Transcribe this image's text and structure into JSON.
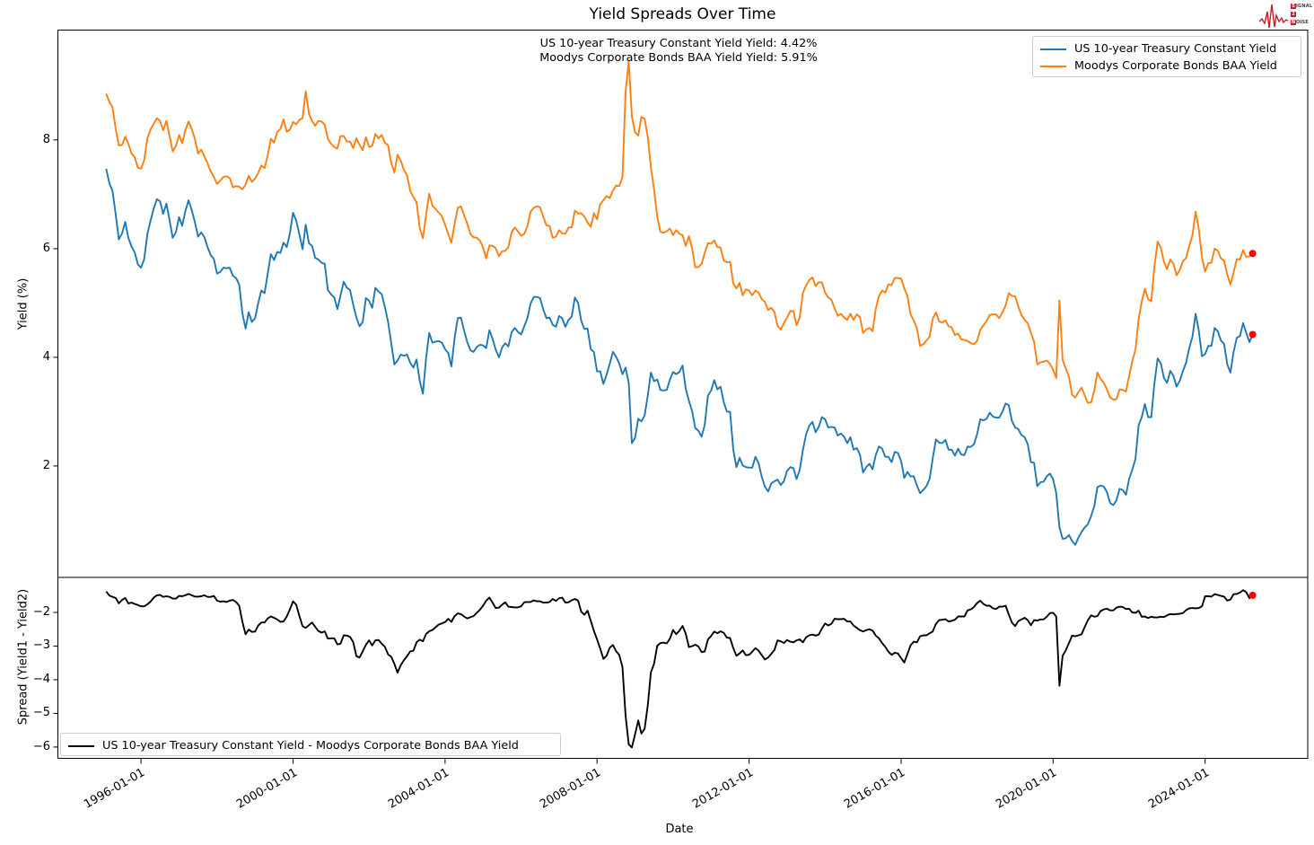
{
  "figure": {
    "title": "Yield Spreads Over Time"
  },
  "annotation": {
    "line1": "US 10-year Treasury Constant Yield Yield: 4.42%",
    "line2": "Moodys Corporate Bonds BAA Yield Yield: 5.91%"
  },
  "legends": {
    "top": [
      {
        "label": "US 10-year Treasury Constant Yield",
        "color": "#1f77b4"
      },
      {
        "label": "Moodys Corporate Bonds BAA Yield",
        "color": "#ff7f0e"
      }
    ],
    "bottom": [
      {
        "label": "US 10-year Treasury Constant Yield - Moodys Corporate Bonds BAA Yield",
        "color": "#000000"
      }
    ]
  },
  "logo": {
    "color": "#c41e25",
    "lines": [
      {
        "boxed": "S",
        "rest": "IGNAL"
      },
      {
        "boxed": "2",
        "rest": ""
      },
      {
        "boxed": "N",
        "rest": "OISE"
      }
    ]
  },
  "chart_data": {
    "type": "line",
    "title": "Yield Spreads Over Time",
    "xlabel": "Date",
    "x_start": 1995.0833,
    "x_step_years": 0.0833333,
    "xlim": [
      1993.8,
      2026.7
    ],
    "xticks": {
      "years": [
        1996,
        2000,
        2004,
        2008,
        2012,
        2016,
        2020,
        2024
      ],
      "labels": [
        "1996-01-01",
        "2000-01-01",
        "2004-01-01",
        "2008-01-01",
        "2012-01-01",
        "2016-01-01",
        "2020-01-01",
        "2024-01-01"
      ]
    },
    "grid": false,
    "panels": [
      {
        "ylabel": "Yield (%)",
        "ylim": [
          -0.05,
          10.03
        ],
        "yticks": [
          2,
          4,
          6,
          8
        ]
      },
      {
        "ylabel": "Spread (Yield1 - Yield2)",
        "ylim": [
          -6.35,
          -0.96
        ],
        "yticks": [
          -2,
          -3,
          -4,
          -5,
          -6
        ]
      }
    ],
    "end_marker_color": "#ff0000",
    "series": [
      {
        "name": "US 10-year Treasury Constant Yield",
        "color": "#1f77b4",
        "panel": 0,
        "final_value": 4.42,
        "values": [
          7.47,
          7.2,
          7.06,
          6.63,
          6.17,
          6.28,
          6.49,
          6.2,
          6.04,
          5.93,
          5.71,
          5.65,
          5.81,
          6.27,
          6.51,
          6.74,
          6.91,
          6.87,
          6.64,
          6.83,
          6.53,
          6.2,
          6.3,
          6.58,
          6.42,
          6.69,
          6.89,
          6.71,
          6.49,
          6.22,
          6.3,
          6.21,
          6.03,
          5.88,
          5.81,
          5.54,
          5.57,
          5.65,
          5.64,
          5.65,
          5.5,
          5.46,
          5.34,
          4.81,
          4.53,
          4.83,
          4.65,
          4.72,
          5.0,
          5.23,
          5.18,
          5.54,
          5.9,
          5.79,
          5.94,
          5.92,
          6.11,
          6.03,
          6.28,
          6.66,
          6.52,
          6.26,
          5.99,
          6.44,
          6.1,
          6.05,
          5.83,
          5.8,
          5.74,
          5.72,
          5.24,
          5.16,
          5.1,
          4.89,
          5.14,
          5.39,
          5.28,
          5.24,
          4.97,
          4.73,
          4.57,
          4.65,
          5.09,
          5.04,
          4.91,
          5.28,
          5.21,
          5.16,
          4.93,
          4.65,
          4.26,
          3.87,
          3.94,
          4.05,
          4.03,
          4.05,
          3.9,
          3.81,
          3.96,
          3.57,
          3.33,
          3.98,
          4.45,
          4.27,
          4.29,
          4.3,
          4.27,
          4.15,
          4.08,
          3.83,
          4.35,
          4.72,
          4.73,
          4.5,
          4.28,
          4.13,
          4.1,
          4.19,
          4.23,
          4.22,
          4.17,
          4.5,
          4.34,
          4.14,
          4.0,
          4.18,
          4.26,
          4.2,
          4.46,
          4.54,
          4.47,
          4.42,
          4.57,
          4.72,
          4.99,
          5.11,
          5.11,
          5.09,
          4.88,
          4.72,
          4.73,
          4.6,
          4.56,
          4.76,
          4.72,
          4.56,
          4.69,
          4.75,
          5.1,
          5.0,
          4.67,
          4.52,
          4.53,
          4.15,
          4.1,
          3.74,
          3.74,
          3.51,
          3.68,
          3.88,
          4.1,
          4.01,
          3.89,
          3.69,
          3.81,
          3.53,
          2.42,
          2.52,
          2.87,
          2.82,
          2.93,
          3.29,
          3.72,
          3.56,
          3.59,
          3.4,
          3.39,
          3.4,
          3.59,
          3.73,
          3.69,
          3.73,
          3.85,
          3.42,
          3.2,
          3.01,
          2.7,
          2.65,
          2.54,
          2.76,
          3.29,
          3.39,
          3.58,
          3.41,
          3.46,
          3.17,
          3.0,
          3.0,
          2.3,
          1.98,
          2.15,
          2.01,
          1.98,
          1.97,
          1.97,
          2.17,
          2.05,
          1.8,
          1.62,
          1.53,
          1.68,
          1.72,
          1.75,
          1.65,
          1.72,
          1.91,
          1.98,
          1.96,
          1.76,
          1.93,
          2.3,
          2.58,
          2.74,
          2.81,
          2.62,
          2.72,
          2.9,
          2.86,
          2.71,
          2.72,
          2.71,
          2.56,
          2.6,
          2.54,
          2.42,
          2.53,
          2.3,
          2.33,
          2.21,
          1.88,
          1.98,
          2.04,
          1.94,
          2.2,
          2.36,
          2.32,
          2.17,
          2.17,
          2.07,
          2.26,
          2.24,
          2.09,
          1.78,
          1.89,
          1.81,
          1.81,
          1.64,
          1.5,
          1.56,
          1.63,
          1.76,
          2.14,
          2.49,
          2.43,
          2.42,
          2.48,
          2.3,
          2.3,
          2.19,
          2.32,
          2.21,
          2.2,
          2.36,
          2.35,
          2.4,
          2.58,
          2.86,
          2.84,
          2.87,
          2.98,
          2.91,
          2.89,
          2.89,
          3.0,
          3.15,
          3.12,
          2.83,
          2.71,
          2.68,
          2.57,
          2.53,
          2.4,
          2.07,
          2.06,
          1.63,
          1.7,
          1.71,
          1.81,
          1.86,
          1.76,
          1.5,
          0.87,
          0.66,
          0.67,
          0.73,
          0.62,
          0.55,
          0.68,
          0.79,
          0.87,
          0.93,
          1.08,
          1.26,
          1.61,
          1.64,
          1.62,
          1.52,
          1.32,
          1.28,
          1.37,
          1.58,
          1.56,
          1.47,
          1.76,
          1.93,
          2.13,
          2.75,
          2.9,
          3.14,
          2.9,
          2.9,
          3.52,
          3.98,
          3.89,
          3.62,
          3.53,
          3.75,
          3.66,
          3.46,
          3.57,
          3.75,
          3.9,
          4.17,
          4.38,
          4.8,
          4.5,
          4.02,
          4.06,
          4.21,
          4.21,
          4.54,
          4.48,
          4.31,
          4.25,
          3.87,
          3.72,
          4.1,
          4.36,
          4.39,
          4.63,
          4.45,
          4.28,
          4.42
        ]
      },
      {
        "name": "Moodys Corporate Bonds BAA Yield",
        "color": "#ff7f0e",
        "panel": 0,
        "final_value": 5.91,
        "values": [
          8.85,
          8.7,
          8.6,
          8.2,
          7.9,
          7.91,
          8.06,
          7.93,
          7.75,
          7.68,
          7.49,
          7.47,
          7.63,
          8.03,
          8.19,
          8.3,
          8.4,
          8.35,
          8.18,
          8.35,
          8.07,
          7.79,
          7.89,
          8.09,
          7.94,
          8.18,
          8.34,
          8.2,
          8.02,
          7.75,
          7.82,
          7.7,
          7.57,
          7.42,
          7.32,
          7.19,
          7.25,
          7.32,
          7.33,
          7.3,
          7.13,
          7.15,
          7.14,
          7.09,
          7.18,
          7.34,
          7.23,
          7.29,
          7.39,
          7.53,
          7.48,
          7.72,
          8.02,
          7.95,
          8.15,
          8.2,
          8.38,
          8.15,
          8.19,
          8.33,
          8.29,
          8.37,
          8.4,
          8.9,
          8.48,
          8.35,
          8.26,
          8.35,
          8.34,
          8.28,
          8.02,
          7.93,
          7.87,
          7.84,
          8.07,
          8.07,
          7.97,
          7.97,
          7.85,
          8.03,
          7.91,
          7.81,
          8.05,
          7.87,
          7.89,
          8.11,
          8.03,
          8.09,
          7.95,
          7.9,
          7.58,
          7.4,
          7.73,
          7.62,
          7.45,
          7.35,
          7.06,
          6.95,
          6.85,
          6.38,
          6.19,
          6.62,
          7.01,
          6.79,
          6.73,
          6.66,
          6.6,
          6.44,
          6.27,
          6.11,
          6.46,
          6.75,
          6.78,
          6.62,
          6.46,
          6.27,
          6.21,
          6.2,
          6.15,
          6.02,
          5.82,
          6.06,
          6.05,
          6.01,
          5.86,
          5.95,
          5.96,
          6.03,
          6.3,
          6.39,
          6.32,
          6.24,
          6.27,
          6.41,
          6.68,
          6.75,
          6.78,
          6.76,
          6.59,
          6.43,
          6.42,
          6.2,
          6.22,
          6.34,
          6.28,
          6.27,
          6.39,
          6.39,
          6.7,
          6.65,
          6.65,
          6.59,
          6.48,
          6.4,
          6.65,
          6.54,
          6.82,
          6.89,
          6.97,
          6.93,
          7.07,
          7.16,
          7.15,
          7.31,
          8.88,
          9.45,
          8.43,
          8.14,
          8.08,
          8.42,
          8.39,
          8.06,
          7.5,
          7.09,
          6.58,
          6.31,
          6.29,
          6.32,
          6.37,
          6.25,
          6.34,
          6.27,
          6.25,
          6.05,
          6.23,
          6.01,
          5.66,
          5.66,
          5.72,
          5.92,
          6.1,
          6.09,
          6.15,
          6.03,
          6.02,
          5.78,
          5.75,
          5.76,
          5.36,
          5.27,
          5.37,
          5.14,
          5.25,
          5.23,
          5.14,
          5.23,
          5.19,
          5.07,
          5.02,
          4.87,
          4.91,
          4.84,
          4.58,
          4.51,
          4.63,
          4.73,
          4.85,
          4.85,
          4.59,
          4.73,
          5.19,
          5.32,
          5.42,
          5.47,
          5.31,
          5.38,
          5.38,
          5.19,
          5.1,
          5.06,
          4.9,
          4.76,
          4.8,
          4.73,
          4.69,
          4.8,
          4.69,
          4.79,
          4.74,
          4.45,
          4.51,
          4.54,
          4.48,
          4.89,
          5.13,
          5.23,
          5.19,
          5.34,
          5.33,
          5.46,
          5.46,
          5.45,
          5.27,
          5.13,
          4.79,
          4.68,
          4.53,
          4.21,
          4.24,
          4.31,
          4.38,
          4.71,
          4.83,
          4.66,
          4.64,
          4.68,
          4.57,
          4.55,
          4.41,
          4.44,
          4.33,
          4.32,
          4.3,
          4.26,
          4.24,
          4.3,
          4.51,
          4.59,
          4.67,
          4.78,
          4.79,
          4.79,
          4.72,
          4.83,
          4.95,
          5.18,
          5.13,
          5.12,
          4.94,
          4.78,
          4.69,
          4.63,
          4.45,
          4.29,
          3.87,
          3.91,
          3.92,
          3.94,
          3.88,
          3.77,
          3.62,
          5.05,
          3.95,
          3.8,
          3.64,
          3.31,
          3.26,
          3.36,
          3.44,
          3.3,
          3.16,
          3.17,
          3.39,
          3.72,
          3.6,
          3.53,
          3.41,
          3.26,
          3.22,
          3.23,
          3.41,
          3.4,
          3.37,
          3.65,
          3.93,
          4.14,
          4.7,
          5.03,
          5.26,
          5.07,
          5.03,
          5.67,
          6.13,
          6.02,
          5.76,
          5.62,
          5.8,
          5.72,
          5.51,
          5.61,
          5.77,
          5.83,
          6.05,
          6.25,
          6.68,
          6.37,
          5.84,
          5.58,
          5.73,
          5.74,
          6.0,
          5.96,
          5.82,
          5.78,
          5.52,
          5.34,
          5.56,
          5.81,
          5.8,
          5.97,
          5.85,
          5.86,
          5.91
        ]
      }
    ],
    "spread": {
      "name": "US 10-year Treasury Constant Yield - Moodys Corporate Bonds BAA Yield",
      "color": "#000000",
      "panel": 1,
      "definition": "series0_minus_series1",
      "final_value": -1.49
    }
  }
}
